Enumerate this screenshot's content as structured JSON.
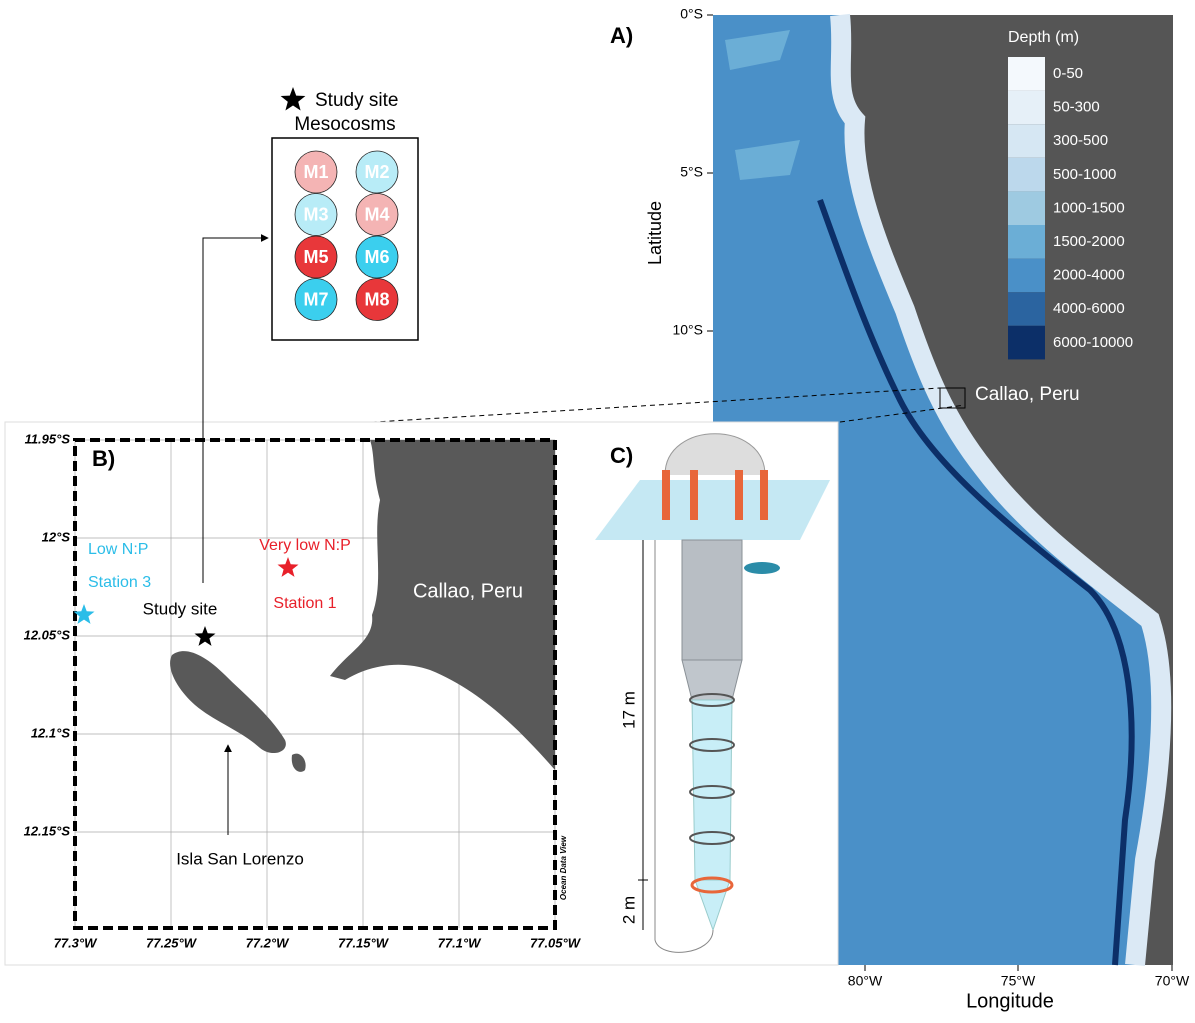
{
  "panel_a": {
    "label": "A)",
    "y_ticks": [
      "0°S",
      "5°S",
      "10°S"
    ],
    "y_axis_label": "Latitude",
    "x_ticks": [
      "80°W",
      "75°W",
      "70°W"
    ],
    "x_axis_label": "Longitude",
    "location_label": "Callao, Peru",
    "legend": {
      "title": "Depth (m)",
      "items": [
        {
          "label": "0-50",
          "color": "#f4f9fd"
        },
        {
          "label": "50-300",
          "color": "#e6f0f8"
        },
        {
          "label": "300-500",
          "color": "#d6e7f3"
        },
        {
          "label": "500-1000",
          "color": "#bcd8ec"
        },
        {
          "label": "1000-1500",
          "color": "#9ecae1"
        },
        {
          "label": "1500-2000",
          "color": "#6baed6"
        },
        {
          "label": "2000-4000",
          "color": "#4a90c8"
        },
        {
          "label": "4000-6000",
          "color": "#2b64a0"
        },
        {
          "label": "6000-10000",
          "color": "#0c2f68"
        }
      ]
    }
  },
  "panel_b": {
    "label": "B)",
    "y_ticks": [
      "11.95°S",
      "12°S",
      "12.05°S",
      "12.1°S",
      "12.15°S"
    ],
    "x_ticks": [
      "77.3°W",
      "77.25°W",
      "77.2°W",
      "77.15°W",
      "77.1°W",
      "77.05°W"
    ],
    "station_3": {
      "ratio": "Low N:P",
      "name": "Station 3"
    },
    "station_1": {
      "ratio": "Very low N:P",
      "name": "Station 1"
    },
    "study_site": "Study site",
    "city": "Callao, Peru",
    "island": "Isla San Lorenzo",
    "credit": "Ocean Data View"
  },
  "mesocosm_box": {
    "legend": "Study site",
    "title": "Mesocosms",
    "items": [
      {
        "label": "M1",
        "color": "#f4b4b4"
      },
      {
        "label": "M2",
        "color": "#b8ecf7"
      },
      {
        "label": "M3",
        "color": "#b8ecf7"
      },
      {
        "label": "M4",
        "color": "#f4b4b4"
      },
      {
        "label": "M5",
        "color": "#e8373a"
      },
      {
        "label": "M6",
        "color": "#3bcfee"
      },
      {
        "label": "M7",
        "color": "#3bcfee"
      },
      {
        "label": "M8",
        "color": "#e8373a"
      }
    ]
  },
  "panel_c": {
    "label": "C)",
    "length_long": "17 m",
    "length_short": "2 m"
  }
}
